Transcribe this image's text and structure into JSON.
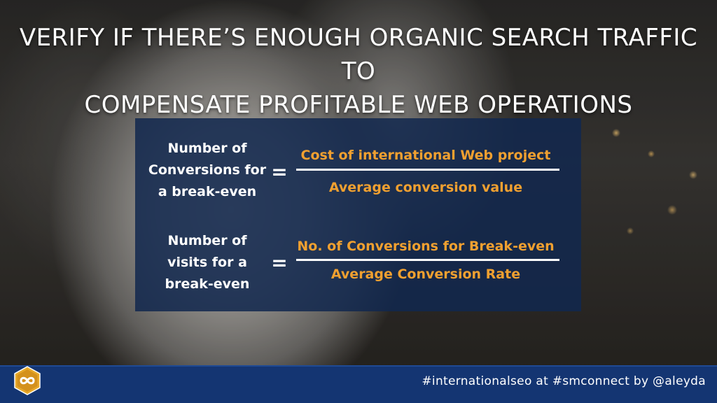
{
  "slide": {
    "title_line1": "VERIFY IF THERE’S ENOUGH ORGANIC SEARCH TRAFFIC TO",
    "title_line2": "COMPENSATE PROFITABLE WEB OPERATIONS"
  },
  "formulas": [
    {
      "lhs_lines": [
        "Number of",
        "Conversions for",
        "a break-even"
      ],
      "equals": "=",
      "numerator": "Cost of international Web project",
      "denominator": "Average conversion value"
    },
    {
      "lhs_lines": [
        "Number of",
        "visits for a",
        "break-even"
      ],
      "equals": "=",
      "numerator": "No. of Conversions for Break-even",
      "denominator": "Average Conversion Rate"
    }
  ],
  "footer": {
    "handle_text": "#internationalseo at #smconnect by @aleyda",
    "logo_icon": "infinity-hexagon-logo-icon"
  },
  "colors": {
    "panel_bg": "#12284e",
    "accent_orange": "#f0a030",
    "footer_bg": "#143572",
    "logo_gold": "#e8a92a"
  }
}
